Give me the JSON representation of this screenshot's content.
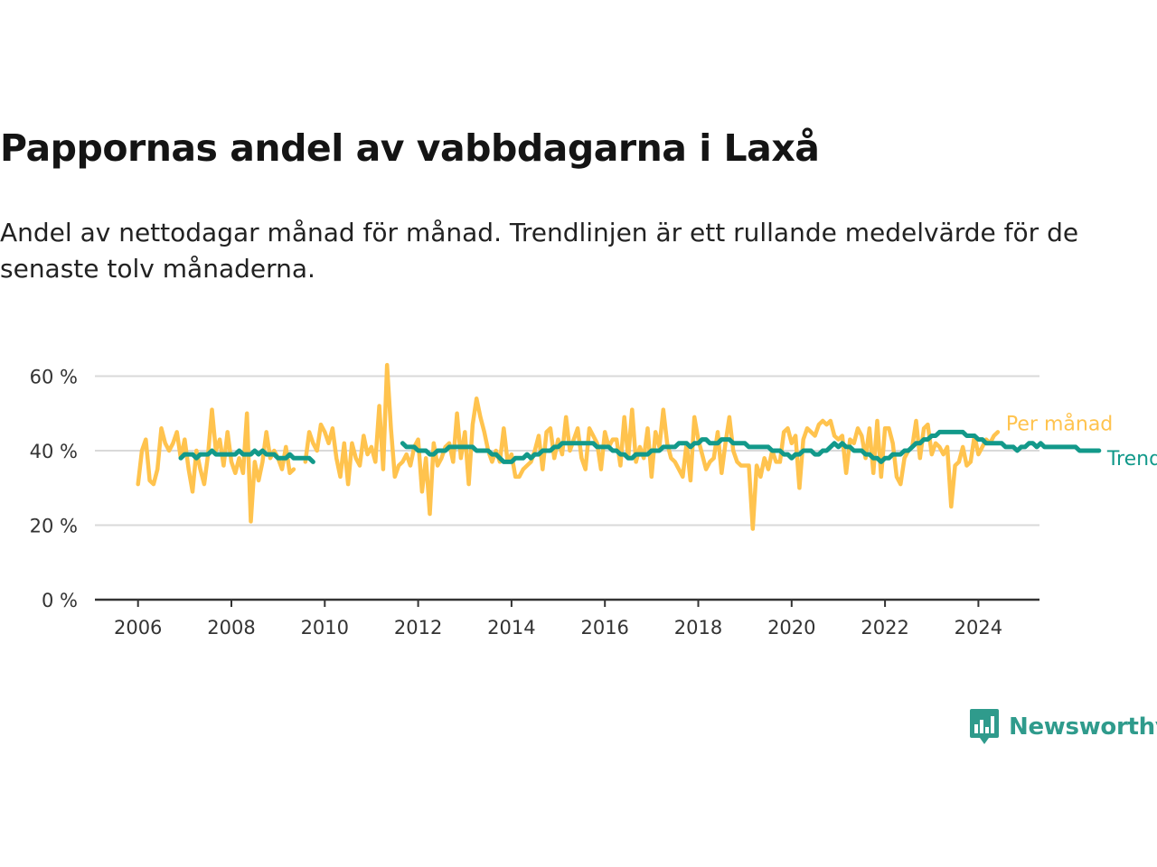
{
  "title": "Pappornas andel av vabbdagarna i Laxå",
  "subtitle": "Andel av nettodagar månad för månad. Trendlinjen är ett rullande medelvärde för de senaste tolv månaderna.",
  "logo": {
    "text": "Newsworthy",
    "icon": "newsworthy-chart-bubble-icon",
    "color": "#2f9b8c"
  },
  "chart_data": {
    "type": "line",
    "x_axis": {
      "ticks": [
        "2006",
        "2008",
        "2010",
        "2012",
        "2014",
        "2016",
        "2018",
        "2020",
        "2022",
        "2024"
      ],
      "range": [
        "2005-07",
        "2025-02"
      ]
    },
    "y_axis": {
      "ticks": [
        "0 %",
        "20 %",
        "40 %",
        "60 %"
      ],
      "tick_values": [
        0,
        20,
        40,
        60
      ],
      "range": [
        0,
        64
      ],
      "unit": "%"
    },
    "grid": true,
    "legend": "inline labels at right end of lines",
    "series": [
      {
        "name": "Per månad",
        "color": "#ffc34e",
        "start": "2006-01",
        "values": [
          31,
          40,
          43,
          32,
          31,
          35,
          46,
          42,
          40,
          42,
          45,
          38,
          43,
          35,
          29,
          40,
          35,
          31,
          39,
          51,
          40,
          43,
          36,
          45,
          37,
          34,
          38,
          34,
          50,
          21,
          37,
          32,
          37,
          45,
          38,
          40,
          38,
          35,
          41,
          34,
          35,
          null,
          null,
          37,
          45,
          42,
          40,
          47,
          45,
          42,
          46,
          38,
          33,
          42,
          31,
          42,
          38,
          36,
          44,
          39,
          41,
          37,
          52,
          35,
          63,
          46,
          33,
          36,
          37,
          39,
          36,
          41,
          43,
          29,
          38,
          23,
          42,
          36,
          38,
          41,
          42,
          37,
          50,
          38,
          45,
          31,
          47,
          54,
          49,
          45,
          40,
          37,
          40,
          37,
          46,
          37,
          39,
          33,
          33,
          35,
          36,
          37,
          40,
          44,
          35,
          45,
          46,
          38,
          43,
          39,
          49,
          40,
          43,
          46,
          38,
          35,
          46,
          44,
          42,
          35,
          45,
          41,
          43,
          43,
          36,
          49,
          38,
          51,
          37,
          41,
          38,
          46,
          33,
          45,
          41,
          51,
          42,
          38,
          37,
          35,
          33,
          42,
          32,
          49,
          43,
          39,
          35,
          37,
          38,
          45,
          34,
          42,
          49,
          40,
          37,
          36,
          36,
          36,
          19,
          36,
          33,
          38,
          35,
          40,
          37,
          37,
          45,
          46,
          42,
          44,
          30,
          43,
          46,
          45,
          44,
          47,
          48,
          47,
          48,
          44,
          43,
          44,
          34,
          43,
          42,
          46,
          44,
          38,
          46,
          34,
          48,
          33,
          46,
          46,
          42,
          33,
          31,
          38,
          40,
          41,
          48,
          38,
          46,
          47,
          39,
          42,
          41,
          39,
          41,
          25,
          36,
          37,
          41,
          36,
          37,
          44,
          39,
          41,
          43,
          42,
          44,
          45
        ]
      },
      {
        "name": "Trend",
        "color": "#12998a",
        "start": "2006-12",
        "values": [
          38,
          39,
          39,
          39,
          38,
          39,
          39,
          39,
          40,
          39,
          39,
          39,
          39,
          39,
          39,
          40,
          39,
          39,
          39,
          40,
          39,
          40,
          39,
          39,
          39,
          38,
          38,
          38,
          39,
          38,
          38,
          38,
          38,
          38,
          37,
          null,
          null,
          null,
          null,
          null,
          null,
          null,
          null,
          null,
          null,
          null,
          null,
          null,
          null,
          null,
          null,
          null,
          null,
          null,
          null,
          null,
          null,
          42,
          41,
          41,
          41,
          40,
          40,
          40,
          39,
          39,
          40,
          40,
          40,
          41,
          41,
          41,
          41,
          41,
          41,
          41,
          40,
          40,
          40,
          40,
          39,
          39,
          38,
          37,
          37,
          37,
          38,
          38,
          38,
          39,
          38,
          39,
          39,
          40,
          40,
          40,
          41,
          41,
          42,
          42,
          42,
          42,
          42,
          42,
          42,
          42,
          42,
          41,
          41,
          41,
          41,
          40,
          40,
          39,
          39,
          38,
          38,
          39,
          39,
          39,
          39,
          40,
          40,
          40,
          41,
          41,
          41,
          41,
          42,
          42,
          42,
          41,
          42,
          42,
          43,
          43,
          42,
          42,
          42,
          43,
          43,
          43,
          42,
          42,
          42,
          42,
          41,
          41,
          41,
          41,
          41,
          41,
          40,
          40,
          40,
          39,
          39,
          38,
          39,
          39,
          40,
          40,
          40,
          39,
          39,
          40,
          40,
          41,
          42,
          41,
          42,
          41,
          41,
          40,
          40,
          40,
          39,
          39,
          38,
          38,
          37,
          38,
          38,
          39,
          39,
          39,
          40,
          40,
          41,
          42,
          42,
          43,
          43,
          44,
          44,
          45,
          45,
          45,
          45,
          45,
          45,
          45,
          44,
          44,
          44,
          43,
          43,
          42,
          42,
          42,
          42,
          42,
          41,
          41,
          41,
          40,
          41,
          41,
          42,
          42,
          41,
          42,
          41,
          41,
          41,
          41,
          41,
          41,
          41,
          41,
          41,
          40,
          40,
          40,
          40,
          40,
          40
        ]
      }
    ]
  }
}
